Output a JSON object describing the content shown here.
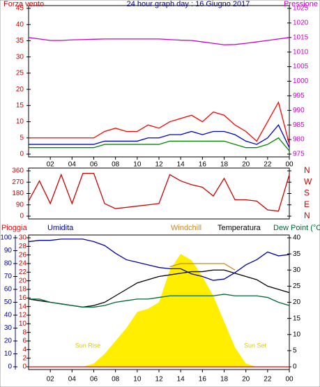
{
  "chart_data": [
    {
      "type": "line",
      "title": "24 hour graph day : 16 Giugno 2017",
      "ylabel": "Forza vento",
      "ycolor": "#cc0000",
      "y2color": "#cc00cc",
      "x": [
        0,
        1,
        2,
        3,
        4,
        5,
        6,
        7,
        8,
        9,
        10,
        11,
        12,
        13,
        14,
        15,
        16,
        17,
        18,
        19,
        20,
        21,
        22,
        23,
        24
      ],
      "xlim": [
        0,
        24
      ],
      "xticks": [
        {
          "value": 2,
          "label": "02"
        },
        {
          "value": 4,
          "label": "04"
        },
        {
          "value": 6,
          "label": "06"
        },
        {
          "value": 8,
          "label": "08"
        },
        10,
        12,
        14,
        16,
        18,
        20,
        22,
        {
          "value": 24,
          "label": "00"
        }
      ],
      "ylim": [
        0,
        45
      ],
      "yticks": [
        0,
        5,
        10,
        15,
        20,
        25,
        30,
        35,
        40,
        45
      ],
      "y2lim": [
        975,
        1025
      ],
      "y2ticks": [
        975,
        980,
        985,
        990,
        995,
        1000,
        1005,
        1010,
        1015,
        1020,
        1025
      ],
      "series": [
        {
          "color": "#ff0000",
          "values": [
            5,
            5,
            5,
            5,
            5,
            5,
            5,
            7,
            8,
            7,
            7,
            9,
            8,
            10,
            11,
            12,
            10,
            13,
            12,
            9,
            7,
            4,
            10,
            16,
            3
          ]
        },
        {
          "color": "#0000cc",
          "values": [
            3,
            3,
            3,
            3,
            3,
            3,
            3,
            4,
            4,
            4,
            4,
            5,
            5,
            6,
            6,
            7,
            6,
            7,
            7,
            6,
            4,
            3,
            5,
            9,
            2
          ]
        },
        {
          "color": "#008800",
          "values": [
            2,
            2,
            2,
            2,
            2,
            2,
            2,
            3,
            3,
            3,
            3,
            3,
            3,
            4,
            4,
            4,
            4,
            4,
            4,
            3,
            2,
            2,
            3,
            5,
            1
          ]
        },
        {
          "name": "Pressione",
          "color": "#cc00cc",
          "axis": "y2",
          "values": [
            1015,
            1014.5,
            1014,
            1014,
            1014.2,
            1014.3,
            1014.4,
            1014.5,
            1014.5,
            1014.5,
            1014.5,
            1014.5,
            1014.5,
            1014.3,
            1014.1,
            1014,
            1013.5,
            1013,
            1012.5,
            1012.6,
            1013,
            1013.5,
            1014,
            1014.5,
            1015
          ]
        }
      ]
    },
    {
      "type": "line",
      "ycolor": "#cc0000",
      "y2color": "#cc0000",
      "x": [
        0,
        1,
        2,
        3,
        4,
        5,
        6,
        7,
        8,
        9,
        10,
        11,
        12,
        13,
        14,
        15,
        16,
        17,
        18,
        19,
        20,
        21,
        22,
        23,
        24
      ],
      "xlim": [
        0,
        24
      ],
      "ylim": [
        0,
        360
      ],
      "yticks": [
        0,
        90,
        180,
        270,
        360
      ],
      "y2lim": [
        0,
        360
      ],
      "y2ticks": [
        {
          "value": 0,
          "label": "N"
        },
        {
          "value": 90,
          "label": "E"
        },
        {
          "value": 180,
          "label": "S"
        },
        {
          "value": 270,
          "label": "W"
        },
        {
          "value": 360,
          "label": "N"
        }
      ],
      "series": [
        {
          "color": "#cc0000",
          "values": [
            120,
            280,
            100,
            330,
            100,
            340,
            340,
            100,
            60,
            70,
            80,
            90,
            100,
            330,
            280,
            250,
            230,
            160,
            300,
            130,
            130,
            120,
            50,
            40,
            330
          ]
        }
      ]
    },
    {
      "type": "line",
      "annotations": [
        "Sun Rise",
        "Sun Set"
      ],
      "ycolor": "#cc0000",
      "y2color": "#000000",
      "y3color": "#0000aa",
      "x": [
        0,
        1,
        2,
        3,
        4,
        5,
        6,
        7,
        8,
        9,
        10,
        11,
        12,
        13,
        14,
        15,
        16,
        17,
        18,
        19,
        20,
        21,
        22,
        23,
        24
      ],
      "xlim": [
        0,
        24
      ],
      "xticks": [
        {
          "value": 2,
          "label": "02"
        },
        {
          "value": 4,
          "label": "04"
        },
        {
          "value": 6,
          "label": "06"
        },
        {
          "value": 8,
          "label": "08"
        },
        10,
        12,
        14,
        16,
        18,
        20,
        22,
        {
          "value": 24,
          "label": "00"
        }
      ],
      "ylim": [
        0,
        30
      ],
      "yticks": [
        0,
        2,
        4,
        6,
        8,
        10,
        12,
        14,
        16,
        18,
        20,
        22,
        24,
        26,
        28,
        30
      ],
      "y3lim": [
        0,
        100
      ],
      "y3ticks": [
        0,
        10,
        20,
        30,
        40,
        50,
        60,
        70,
        80,
        90,
        100
      ],
      "y2lim": [
        0,
        40
      ],
      "y2ticks": [
        0,
        5,
        10,
        15,
        20,
        25,
        30,
        35,
        40
      ],
      "series": [
        {
          "color": "#ffee00",
          "axis": "y2",
          "fill": true,
          "values": [
            0,
            0,
            0,
            0,
            0,
            0,
            1,
            4,
            8,
            12,
            17,
            18,
            20,
            30,
            35,
            33,
            28,
            22,
            14,
            6,
            1,
            0,
            0,
            0,
            0
          ]
        },
        {
          "name": "Pioggia",
          "color": "#ff0000",
          "values": [
            0,
            0,
            0,
            0,
            0,
            0,
            0,
            0,
            0,
            0,
            0,
            0,
            0,
            0,
            0,
            0,
            0,
            0,
            0,
            0,
            0,
            0,
            0,
            0,
            0
          ]
        },
        {
          "name": "Umidita",
          "color": "#0000aa",
          "axis": "y3",
          "values": [
            97,
            98,
            98,
            99,
            99,
            99,
            97,
            94,
            88,
            83,
            81,
            79,
            77,
            76,
            76,
            72,
            70,
            67,
            68,
            73,
            79,
            83,
            89,
            86,
            87
          ]
        },
        {
          "name": "Windchill",
          "color": "#cc8822",
          "axis": "y2",
          "values": [
            null,
            null,
            null,
            null,
            null,
            null,
            null,
            null,
            null,
            null,
            null,
            null,
            null,
            31,
            32,
            32,
            32,
            32,
            32,
            30,
            null,
            null,
            null,
            null,
            null
          ]
        },
        {
          "name": "Temperatura",
          "color": "#000000",
          "axis": "y2",
          "values": [
            21,
            20.5,
            20,
            19.5,
            19,
            18.5,
            19,
            20,
            22,
            24,
            26,
            27,
            28,
            28.5,
            29,
            29.5,
            29.5,
            30,
            30,
            29,
            28,
            27,
            25,
            24,
            23
          ]
        },
        {
          "name": "Dew Point (°C",
          "color": "#006633",
          "axis": "y2",
          "values": [
            21,
            21,
            20,
            19.5,
            19,
            18.5,
            18.5,
            19,
            20,
            20.5,
            21,
            21,
            21.5,
            22,
            22,
            22,
            22,
            22,
            22.5,
            22,
            22,
            22,
            21.5,
            20,
            19
          ]
        }
      ]
    }
  ]
}
